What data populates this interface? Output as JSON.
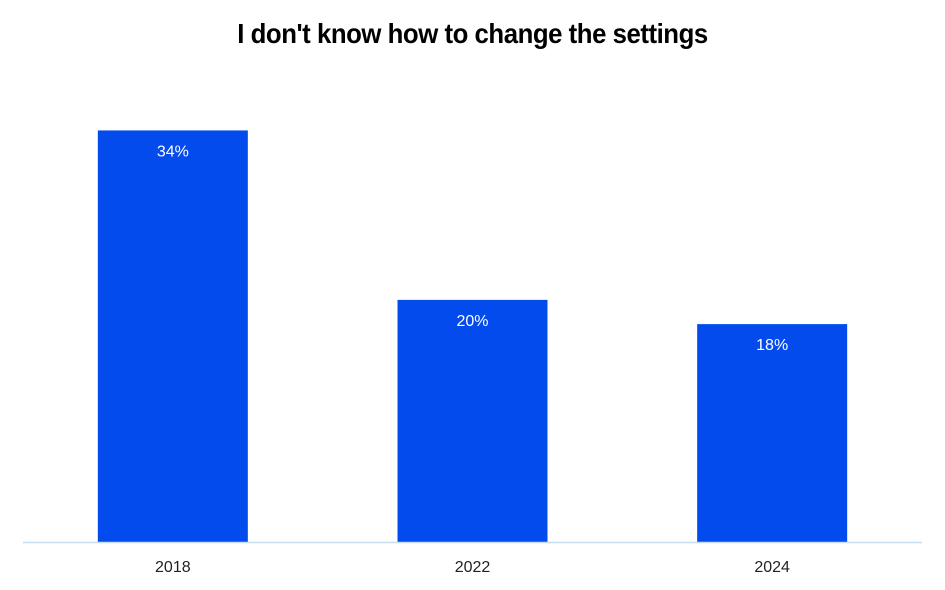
{
  "chart_data": {
    "type": "bar",
    "title": "I don't know how to change the settings",
    "categories": [
      "2018",
      "2022",
      "2024"
    ],
    "values": [
      34,
      20,
      18
    ],
    "data_labels": [
      "34%",
      "20%",
      "18%"
    ],
    "ylim": [
      0,
      38
    ],
    "grid": false,
    "legend": "none"
  },
  "colors": {
    "bar": "#044bee",
    "axis_line": "#c6dcef",
    "data_label": "#ffffff",
    "tick_label": "#222222",
    "title": "#000000"
  }
}
